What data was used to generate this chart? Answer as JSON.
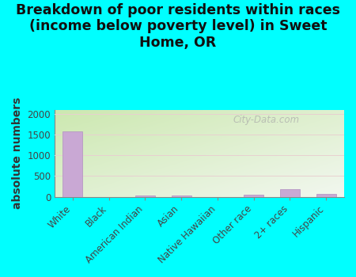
{
  "categories": [
    "White",
    "Black",
    "American Indian",
    "Asian",
    "Native Hawaiian",
    "Other race",
    "2+ races",
    "Hispanic"
  ],
  "values": [
    1570,
    0,
    30,
    28,
    0,
    50,
    185,
    65
  ],
  "bar_color": "#c9a8d4",
  "bar_edge_color": "#b090c0",
  "title": "Breakdown of poor residents within races\n(income below poverty level) in Sweet\nHome, OR",
  "ylabel": "absolute numbers",
  "ylim": [
    0,
    2100
  ],
  "yticks": [
    0,
    500,
    1000,
    1500,
    2000
  ],
  "background_outer": "#00ffff",
  "background_inner": "#e8f2dc",
  "watermark": "City-Data.com",
  "title_fontsize": 12.5,
  "ylabel_fontsize": 10,
  "tick_fontsize": 8.5,
  "title_color": "#101010",
  "axis_label_color": "#333333",
  "tick_label_color": "#444444"
}
